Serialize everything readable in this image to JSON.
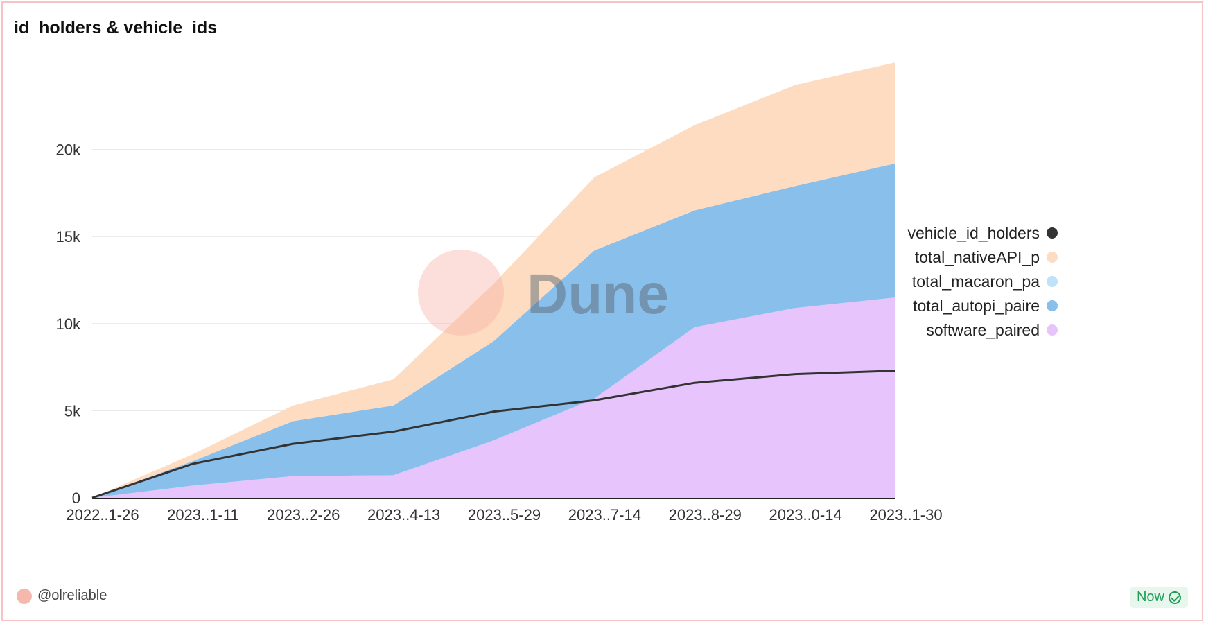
{
  "chart_data": {
    "type": "area",
    "title": "id_holders & vehicle_ids",
    "xlabel": "",
    "ylabel": "",
    "x": [
      "2022..1-26",
      "2023..1-11",
      "2023..2-26",
      "2023..4-13",
      "2023..5-29",
      "2023..7-14",
      "2023..8-29",
      "2023..0-14",
      "2023..1-30"
    ],
    "y_ticks": [
      0,
      5000,
      10000,
      15000,
      20000
    ],
    "y_tick_labels": [
      "0",
      "5k",
      "10k",
      "15k",
      "20k"
    ],
    "ylim": [
      0,
      25000
    ],
    "grid": true,
    "legend_position": "right",
    "stacked": true,
    "series": [
      {
        "name": "software_paired",
        "kind": "area",
        "color": "#e8c4fd",
        "values": [
          0,
          700,
          1250,
          1300,
          3300,
          5700,
          9800,
          10900,
          11500
        ]
      },
      {
        "name": "total_autopi_paired",
        "kind": "area",
        "color": "#88bfeb",
        "values": [
          0,
          1400,
          3150,
          4000,
          5700,
          8500,
          6700,
          7000,
          7700
        ]
      },
      {
        "name": "total_macaron_paired",
        "kind": "area",
        "color": "#bde3fa",
        "values": [
          0,
          0,
          0,
          0,
          0,
          0,
          0,
          0,
          0
        ]
      },
      {
        "name": "total_nativeAPI_paired",
        "kind": "area",
        "color": "#fddcc2",
        "values": [
          0,
          400,
          900,
          1500,
          3300,
          4200,
          4900,
          5800,
          5800
        ]
      },
      {
        "name": "vehicle_id_holders",
        "kind": "line",
        "color": "#333333",
        "values": [
          0,
          1950,
          3100,
          3800,
          4950,
          5600,
          6600,
          7100,
          7300
        ]
      }
    ],
    "legend": [
      "vehicle_id_holders",
      "total_nativeAPI_p",
      "total_macaron_pa",
      "total_autopi_paire",
      "software_paired"
    ],
    "watermark": "Dune"
  },
  "footer": {
    "user": "@olreliable",
    "status": "Now"
  }
}
